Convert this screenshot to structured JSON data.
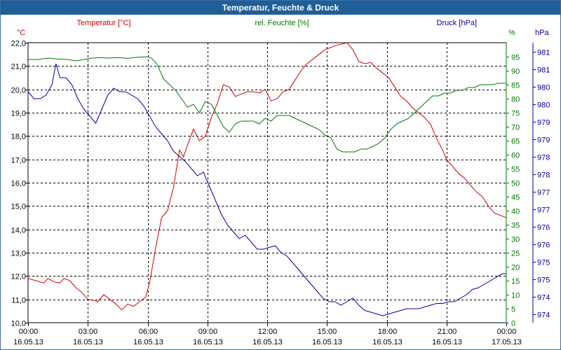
{
  "window": {
    "title": "Temperatur, Feuchte & Druck"
  },
  "colors": {
    "temperature": "#cc0000",
    "humidity": "#007a00",
    "pressure": "#00009c",
    "grid": "#000000"
  },
  "chart_data": {
    "type": "line",
    "title": "Temperatur, Feuchte & Druck",
    "series_titles": {
      "temperature": "Temperatur [°C]",
      "humidity": "rel. Feuchte [%]",
      "pressure": "Druck [hPa]"
    },
    "unit_labels": {
      "temperature": "°C",
      "humidity": "%",
      "pressure": "hPa"
    },
    "x_ticks": [
      {
        "h": 0,
        "time": "00:00",
        "date": "16.05.13"
      },
      {
        "h": 3,
        "time": "03:00",
        "date": "16.05.13"
      },
      {
        "h": 6,
        "time": "06:00",
        "date": "16.05.13"
      },
      {
        "h": 9,
        "time": "09:00",
        "date": "16.05.13"
      },
      {
        "h": 12,
        "time": "12:00",
        "date": "16.05.13"
      },
      {
        "h": 15,
        "time": "15:00",
        "date": "16.05.13"
      },
      {
        "h": 18,
        "time": "18:00",
        "date": "16.05.13"
      },
      {
        "h": 21,
        "time": "21:00",
        "date": "16.05.13"
      },
      {
        "h": 24,
        "time": "00:00",
        "date": "17.05.13"
      }
    ],
    "xlim": [
      0,
      24
    ],
    "axes": {
      "temperature": {
        "min": 10,
        "max": 22,
        "ticks": [
          "10,0",
          "11,0",
          "12,0",
          "13,0",
          "14,0",
          "15,0",
          "16,0",
          "17,0",
          "18,0",
          "19,0",
          "20,0",
          "21,0",
          "22,0"
        ]
      },
      "humidity": {
        "min": 0,
        "max": 100,
        "ticks": [
          "0",
          "5",
          "10",
          "15",
          "20",
          "25",
          "30",
          "35",
          "40",
          "45",
          "50",
          "55",
          "60",
          "65",
          "70",
          "75",
          "80",
          "85",
          "90",
          "95"
        ]
      },
      "pressure": {
        "min": 973.6,
        "max": 981.6,
        "ticks": [
          "974",
          "974",
          "975",
          "975",
          "976",
          "976",
          "977",
          "977",
          "978",
          "978",
          "979",
          "979",
          "980",
          "980",
          "981",
          "981"
        ]
      }
    },
    "series": [
      {
        "key": "temperature",
        "name": "Temperatur [°C]",
        "axis": "temperature",
        "points": [
          [
            0,
            11.9
          ],
          [
            0.4,
            11.8
          ],
          [
            0.8,
            11.7
          ],
          [
            1.0,
            11.9
          ],
          [
            1.3,
            11.75
          ],
          [
            1.6,
            11.7
          ],
          [
            1.8,
            11.9
          ],
          [
            2.1,
            11.8
          ],
          [
            2.4,
            11.5
          ],
          [
            2.7,
            11.3
          ],
          [
            3.0,
            11.0
          ],
          [
            3.3,
            10.95
          ],
          [
            3.5,
            10.9
          ],
          [
            3.8,
            11.2
          ],
          [
            4.1,
            11.0
          ],
          [
            4.4,
            10.8
          ],
          [
            4.7,
            10.55
          ],
          [
            5.0,
            10.8
          ],
          [
            5.3,
            10.7
          ],
          [
            5.6,
            10.9
          ],
          [
            5.9,
            11.1
          ],
          [
            6.1,
            11.7
          ],
          [
            6.4,
            13.2
          ],
          [
            6.7,
            14.5
          ],
          [
            7.0,
            14.8
          ],
          [
            7.3,
            15.8
          ],
          [
            7.6,
            17.4
          ],
          [
            7.8,
            17.1
          ],
          [
            8.0,
            17.6
          ],
          [
            8.3,
            18.3
          ],
          [
            8.6,
            17.8
          ],
          [
            8.9,
            18.0
          ],
          [
            9.2,
            18.8
          ],
          [
            9.5,
            19.4
          ],
          [
            9.8,
            20.2
          ],
          [
            10.1,
            20.1
          ],
          [
            10.4,
            19.7
          ],
          [
            10.7,
            19.8
          ],
          [
            11.0,
            19.9
          ],
          [
            11.3,
            19.9
          ],
          [
            11.6,
            19.85
          ],
          [
            11.9,
            20.0
          ],
          [
            12.2,
            19.5
          ],
          [
            12.5,
            19.6
          ],
          [
            12.8,
            19.9
          ],
          [
            13.1,
            20.0
          ],
          [
            13.4,
            20.4
          ],
          [
            13.7,
            20.8
          ],
          [
            14.0,
            21.1
          ],
          [
            14.3,
            21.3
          ],
          [
            14.6,
            21.5
          ],
          [
            14.9,
            21.7
          ],
          [
            15.2,
            21.8
          ],
          [
            15.5,
            21.9
          ],
          [
            15.8,
            21.95
          ],
          [
            16.0,
            22.0
          ],
          [
            16.3,
            21.7
          ],
          [
            16.6,
            21.2
          ],
          [
            16.9,
            21.1
          ],
          [
            17.2,
            21.15
          ],
          [
            17.5,
            20.9
          ],
          [
            17.8,
            20.7
          ],
          [
            18.1,
            20.5
          ],
          [
            18.4,
            20.1
          ],
          [
            18.7,
            19.7
          ],
          [
            19.0,
            19.5
          ],
          [
            19.3,
            19.2
          ],
          [
            19.6,
            19.0
          ],
          [
            19.9,
            18.8
          ],
          [
            20.2,
            18.5
          ],
          [
            20.5,
            17.9
          ],
          [
            20.8,
            17.4
          ],
          [
            21.0,
            17.0
          ],
          [
            21.3,
            16.7
          ],
          [
            21.6,
            16.4
          ],
          [
            21.9,
            16.2
          ],
          [
            22.2,
            15.9
          ],
          [
            22.5,
            15.6
          ],
          [
            22.8,
            15.4
          ],
          [
            23.1,
            15.0
          ],
          [
            23.4,
            14.7
          ],
          [
            23.7,
            14.6
          ],
          [
            24.0,
            14.5
          ]
        ]
      },
      {
        "key": "humidity",
        "name": "rel. Feuchte [%]",
        "axis": "humidity",
        "points": [
          [
            0,
            94
          ],
          [
            0.5,
            94
          ],
          [
            1.0,
            94.5
          ],
          [
            1.5,
            94.2
          ],
          [
            2.0,
            94
          ],
          [
            2.4,
            93.5
          ],
          [
            2.8,
            94
          ],
          [
            3.2,
            94.5
          ],
          [
            3.6,
            94.7
          ],
          [
            4.0,
            94.5
          ],
          [
            4.5,
            94.7
          ],
          [
            5.0,
            94.4
          ],
          [
            5.5,
            94.8
          ],
          [
            6.0,
            95
          ],
          [
            6.2,
            94.5
          ],
          [
            6.5,
            92
          ],
          [
            6.8,
            87
          ],
          [
            7.1,
            85
          ],
          [
            7.4,
            83
          ],
          [
            7.7,
            80
          ],
          [
            8.0,
            77
          ],
          [
            8.3,
            78
          ],
          [
            8.6,
            75
          ],
          [
            8.9,
            79
          ],
          [
            9.2,
            78
          ],
          [
            9.5,
            74
          ],
          [
            9.8,
            70
          ],
          [
            10.1,
            68
          ],
          [
            10.4,
            71
          ],
          [
            10.7,
            72
          ],
          [
            11.0,
            72
          ],
          [
            11.3,
            72
          ],
          [
            11.6,
            71
          ],
          [
            11.9,
            73
          ],
          [
            12.2,
            72
          ],
          [
            12.5,
            74
          ],
          [
            12.8,
            74
          ],
          [
            13.1,
            74
          ],
          [
            13.4,
            73
          ],
          [
            13.7,
            72
          ],
          [
            14.0,
            71
          ],
          [
            14.3,
            70
          ],
          [
            14.6,
            69
          ],
          [
            14.9,
            67
          ],
          [
            15.2,
            66
          ],
          [
            15.5,
            62
          ],
          [
            15.8,
            61
          ],
          [
            16.1,
            61
          ],
          [
            16.4,
            61
          ],
          [
            16.7,
            62
          ],
          [
            17.0,
            62
          ],
          [
            17.3,
            63
          ],
          [
            17.6,
            64
          ],
          [
            17.9,
            66
          ],
          [
            18.2,
            69
          ],
          [
            18.5,
            71
          ],
          [
            18.8,
            72
          ],
          [
            19.1,
            73
          ],
          [
            19.4,
            75
          ],
          [
            19.7,
            77
          ],
          [
            20.0,
            79
          ],
          [
            20.3,
            81
          ],
          [
            20.6,
            81
          ],
          [
            20.9,
            82
          ],
          [
            21.2,
            82
          ],
          [
            21.5,
            83
          ],
          [
            21.8,
            83
          ],
          [
            22.1,
            84
          ],
          [
            22.4,
            84
          ],
          [
            22.7,
            85
          ],
          [
            23.0,
            85
          ],
          [
            23.3,
            85
          ],
          [
            23.6,
            85.5
          ],
          [
            24.0,
            85.5
          ]
        ]
      },
      {
        "key": "pressure",
        "name": "Druck [hPa]",
        "axis": "pressure",
        "points": [
          [
            0,
            980.2
          ],
          [
            0.3,
            980.0
          ],
          [
            0.6,
            980.0
          ],
          [
            0.9,
            980.1
          ],
          [
            1.2,
            980.4
          ],
          [
            1.4,
            981.0
          ],
          [
            1.6,
            980.6
          ],
          [
            1.9,
            980.6
          ],
          [
            2.2,
            980.4
          ],
          [
            2.5,
            980.0
          ],
          [
            2.8,
            979.7
          ],
          [
            3.1,
            979.5
          ],
          [
            3.4,
            979.3
          ],
          [
            3.7,
            979.7
          ],
          [
            4.0,
            980.1
          ],
          [
            4.3,
            980.3
          ],
          [
            4.6,
            980.2
          ],
          [
            4.9,
            980.2
          ],
          [
            5.2,
            980.1
          ],
          [
            5.5,
            980.0
          ],
          [
            5.8,
            979.8
          ],
          [
            6.1,
            979.5
          ],
          [
            6.4,
            979.2
          ],
          [
            6.7,
            979.0
          ],
          [
            7.0,
            978.8
          ],
          [
            7.3,
            978.5
          ],
          [
            7.6,
            978.35
          ],
          [
            7.9,
            978.2
          ],
          [
            8.2,
            978.0
          ],
          [
            8.5,
            977.8
          ],
          [
            8.8,
            977.9
          ],
          [
            9.1,
            977.5
          ],
          [
            9.4,
            977.1
          ],
          [
            9.7,
            976.7
          ],
          [
            10.0,
            976.4
          ],
          [
            10.3,
            976.2
          ],
          [
            10.6,
            976.0
          ],
          [
            10.9,
            976.1
          ],
          [
            11.2,
            975.9
          ],
          [
            11.5,
            975.7
          ],
          [
            11.8,
            975.7
          ],
          [
            12.1,
            975.75
          ],
          [
            12.4,
            975.8
          ],
          [
            12.7,
            975.6
          ],
          [
            13.0,
            975.5
          ],
          [
            13.3,
            975.3
          ],
          [
            13.6,
            975.1
          ],
          [
            13.9,
            974.9
          ],
          [
            14.2,
            974.7
          ],
          [
            14.5,
            974.5
          ],
          [
            14.8,
            974.3
          ],
          [
            15.1,
            974.2
          ],
          [
            15.4,
            974.2
          ],
          [
            15.7,
            974.1
          ],
          [
            16.0,
            974.2
          ],
          [
            16.3,
            974.3
          ],
          [
            16.6,
            974.1
          ],
          [
            16.9,
            973.95
          ],
          [
            17.2,
            973.9
          ],
          [
            17.5,
            973.85
          ],
          [
            17.8,
            973.8
          ],
          [
            18.1,
            973.85
          ],
          [
            18.4,
            973.9
          ],
          [
            18.7,
            973.95
          ],
          [
            19.0,
            974.0
          ],
          [
            19.3,
            974.0
          ],
          [
            19.6,
            974.0
          ],
          [
            19.9,
            974.05
          ],
          [
            20.2,
            974.1
          ],
          [
            20.5,
            974.15
          ],
          [
            20.8,
            974.15
          ],
          [
            21.1,
            974.2
          ],
          [
            21.4,
            974.2
          ],
          [
            21.7,
            974.3
          ],
          [
            22.0,
            974.4
          ],
          [
            22.3,
            974.55
          ],
          [
            22.6,
            974.6
          ],
          [
            22.9,
            974.7
          ],
          [
            23.2,
            974.8
          ],
          [
            23.5,
            974.9
          ],
          [
            23.8,
            975.0
          ],
          [
            24.0,
            975.0
          ]
        ]
      }
    ]
  }
}
